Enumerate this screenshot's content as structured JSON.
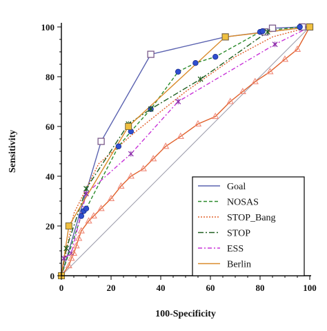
{
  "chart_data": {
    "type": "line",
    "xlabel": "100-Specificity",
    "ylabel": "Sensitivity",
    "xlim": [
      0,
      100
    ],
    "ylim": [
      0,
      100
    ],
    "xticks": [
      0,
      20,
      40,
      60,
      80,
      100
    ],
    "yticks": [
      0,
      20,
      40,
      60,
      80,
      100
    ],
    "grid": false,
    "legend_position": "bottom-right",
    "reference_line": {
      "from": [
        0,
        0
      ],
      "to": [
        100,
        100
      ],
      "color": "#9a9aaa"
    },
    "series": [
      {
        "name": "Goal",
        "color": "#5a62b0",
        "dash": "",
        "marker": "square-open",
        "marker_color": "#7a5a8a",
        "x": [
          0,
          16,
          36,
          66,
          82,
          85,
          97,
          100
        ],
        "y": [
          0,
          54,
          89,
          96,
          98,
          99.5,
          100,
          100
        ]
      },
      {
        "name": "NOSAS",
        "color": "#2a8a2a",
        "dash": "5,3",
        "marker": "circle-filled",
        "marker_color": "#2f4fcf",
        "x": [
          0,
          8,
          9,
          10,
          23,
          28,
          36,
          47,
          54,
          62,
          80,
          81,
          96,
          100
        ],
        "y": [
          0,
          24,
          26,
          27,
          52,
          58,
          67,
          82,
          85.5,
          88,
          98,
          98.3,
          100,
          100
        ]
      },
      {
        "name": "STOP_Bang",
        "color": "#e0602a",
        "dash": "2,2",
        "marker": "none",
        "marker_color": "#e0602a",
        "x": [
          0,
          5,
          15,
          30,
          50,
          70,
          85,
          100
        ],
        "y": [
          0,
          25,
          45,
          58,
          74,
          88,
          96,
          100
        ]
      },
      {
        "name": "STOP",
        "color": "#1f5f1f",
        "dash": "8,3,2,3",
        "marker": "cross",
        "marker_color": "#1f5f1f",
        "x": [
          0,
          2,
          10,
          27,
          36,
          56,
          83,
          100
        ],
        "y": [
          0,
          11,
          35,
          61,
          67,
          79,
          98,
          100
        ]
      },
      {
        "name": "ESS",
        "color": "#c832d8",
        "dash": "6,3,2,3",
        "marker": "cross",
        "marker_color": "#8a2aa8",
        "x": [
          0,
          1,
          4,
          10,
          28,
          47,
          86,
          100
        ],
        "y": [
          0,
          7,
          9,
          33,
          49,
          70,
          93,
          100
        ]
      },
      {
        "name": "ESS",
        "color": "#e0602a",
        "dash": "",
        "marker": "triangle-open",
        "marker_color": "#f08a7a",
        "x": [
          0,
          3,
          4,
          5,
          6,
          7,
          8,
          11,
          13,
          16,
          20,
          24,
          28,
          33,
          37,
          42,
          48,
          55,
          62,
          68,
          73,
          78,
          84,
          90,
          95,
          100
        ],
        "y": [
          0,
          4,
          7,
          9,
          12,
          15,
          18,
          22,
          24,
          27,
          31,
          36,
          40,
          43,
          47,
          52,
          56,
          61,
          64,
          70,
          74,
          78,
          82,
          87,
          91,
          100
        ],
        "legend": false
      },
      {
        "name": "Berlin",
        "color": "#d98a2a",
        "dash": "",
        "marker": "square-filled",
        "marker_color": "#f0c040",
        "x": [
          0,
          3,
          27,
          66,
          100
        ],
        "y": [
          0,
          20,
          60,
          96,
          100
        ]
      }
    ]
  }
}
